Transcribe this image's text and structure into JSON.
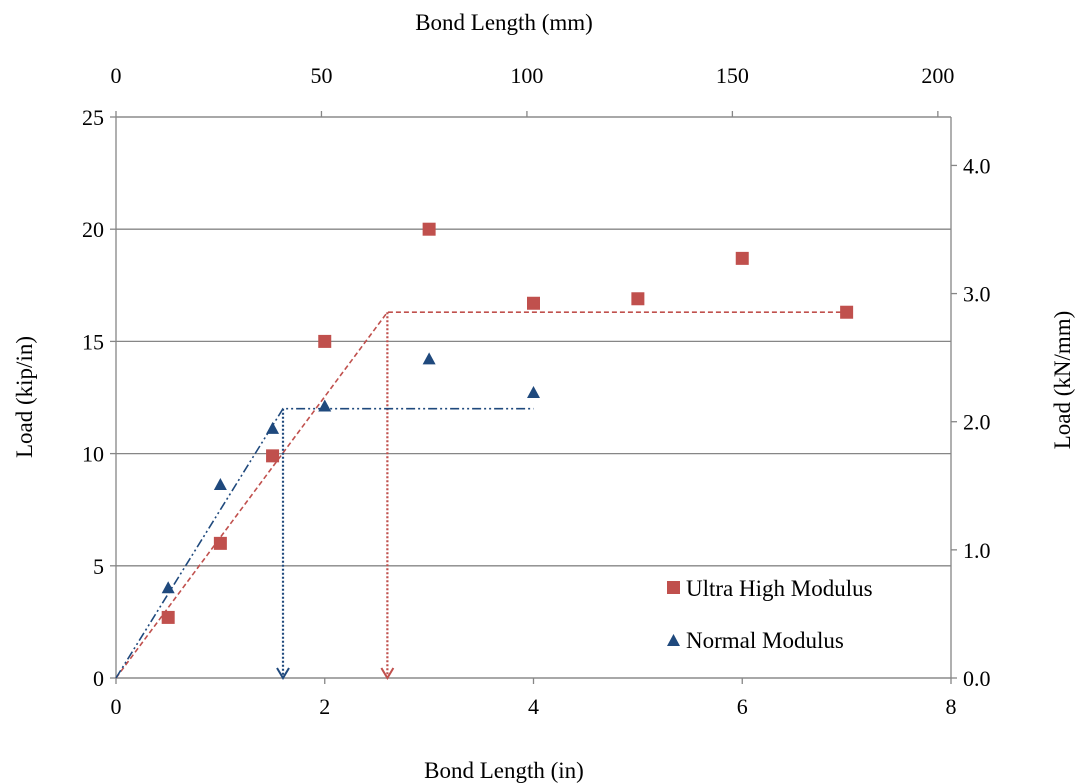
{
  "chart_data": {
    "type": "scatter",
    "x_bottom": {
      "label": "Bond Length (in)",
      "range": [
        0,
        8
      ],
      "ticks": [
        "0",
        "2",
        "4",
        "6",
        "8"
      ]
    },
    "x_top": {
      "label": "Bond Length (mm)",
      "range": [
        0,
        203.2
      ],
      "ticks": [
        "0",
        "50",
        "100",
        "150",
        "200"
      ]
    },
    "y_left": {
      "label": "Load (kip/in)",
      "range": [
        0,
        25
      ],
      "ticks": [
        "0",
        "5",
        "10",
        "15",
        "20",
        "25"
      ]
    },
    "y_right": {
      "label": "Load (kN/mm)",
      "range": [
        0,
        4.378
      ],
      "ticks": [
        "0.0",
        "1.0",
        "2.0",
        "3.0",
        "4.0"
      ]
    },
    "grid": "horizontal",
    "legend_position": "bottom-right",
    "series": [
      {
        "name": "Ultra High Modulus",
        "marker": "square",
        "color": "#c0504d",
        "points": [
          [
            0.5,
            2.7
          ],
          [
            1.0,
            6.0
          ],
          [
            1.5,
            9.9
          ],
          [
            2.0,
            15.0
          ],
          [
            3.0,
            20.0
          ],
          [
            4.0,
            16.7
          ],
          [
            5.0,
            16.9
          ],
          [
            6.0,
            18.7
          ],
          [
            7.0,
            16.3
          ]
        ],
        "trend": {
          "style": "dashed",
          "points": [
            [
              0,
              0
            ],
            [
              2.6,
              16.3
            ],
            [
              7.0,
              16.3
            ]
          ]
        },
        "marker_arrow": {
          "x": 2.6,
          "from_y": 16.3,
          "to_y": 0
        }
      },
      {
        "name": "Normal Modulus",
        "marker": "triangle",
        "color": "#1f497d",
        "points": [
          [
            0.5,
            4.0
          ],
          [
            1.0,
            8.6
          ],
          [
            1.5,
            11.1
          ],
          [
            2.0,
            12.1
          ],
          [
            3.0,
            14.2
          ],
          [
            4.0,
            12.7
          ]
        ],
        "trend": {
          "style": "dash-dot-dot",
          "points": [
            [
              0,
              0
            ],
            [
              1.6,
              12.0
            ],
            [
              4.0,
              12.0
            ]
          ]
        },
        "marker_arrow": {
          "x": 1.6,
          "from_y": 12.0,
          "to_y": 0
        }
      }
    ]
  }
}
